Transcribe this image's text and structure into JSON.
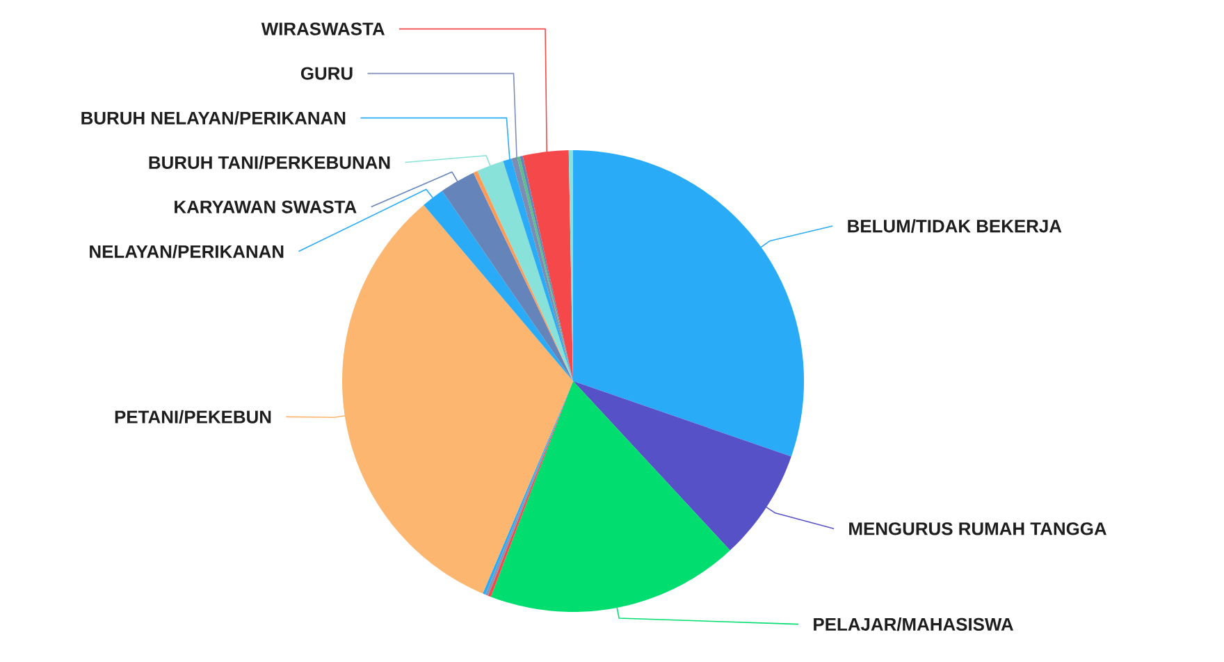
{
  "chart_data": {
    "type": "pie",
    "categories": [
      "BELUM/TIDAK BEKERJA",
      "MENGURUS RUMAH TANGGA",
      "PELAJAR/MAHASISWA",
      null,
      null,
      null,
      "PETANI/PEKEBUN",
      "NELAYAN/PERIKANAN",
      "KARYAWAN SWASTA",
      null,
      "BURUH TANI/PERKEBUNAN",
      "BURUH NELAYAN/PERIKANAN",
      "GURU",
      null,
      null,
      "WIRASWASTA",
      null
    ],
    "values": [
      30.3,
      7.8,
      17.7,
      0.2,
      0.2,
      0.2,
      32.4,
      1.6,
      2.5,
      0.3,
      1.9,
      0.6,
      0.4,
      0.2,
      0.2,
      3.2,
      0.3
    ],
    "colors": [
      "#29abf8",
      "#5651c7",
      "#01de6f",
      "#f5484a",
      "#8496b5",
      "#29abf8",
      "#fdb66f",
      "#29abf8",
      "#6584b9",
      "#fe9c58",
      "#88e2d9",
      "#29abf8",
      "#7b8db3",
      "#5cbf8a",
      "#6584b9",
      "#f5484a",
      "#88e2d9"
    ]
  }
}
